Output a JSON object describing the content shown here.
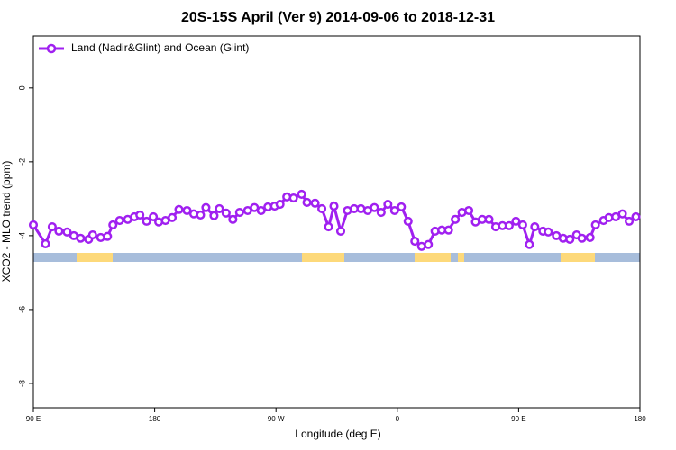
{
  "chart_data": {
    "type": "line",
    "title": "20S-15S April (Ver 9)   2014-09-06 to 2018-12-31",
    "x_label": "Longitude (deg E)",
    "y_label": "XCO2 - MLO trend (ppm)",
    "xlim": [
      90,
      540
    ],
    "ylim": [
      -8.66,
      1.41
    ],
    "xticks": [
      {
        "value": 90,
        "label": "90 E"
      },
      {
        "value": 180,
        "label": "180"
      },
      {
        "value": 270,
        "label": "90 W"
      },
      {
        "value": 360,
        "label": "0"
      },
      {
        "value": 450,
        "label": "90 E"
      },
      {
        "value": 540,
        "label": "180"
      }
    ],
    "yticks": [
      0,
      -2,
      -4,
      -6,
      -8
    ],
    "legend_position": "top-left",
    "x": [
      90,
      99,
      104,
      109,
      115,
      120,
      125,
      131,
      134,
      140,
      145,
      149,
      154,
      160,
      165,
      169,
      174,
      179,
      183,
      188,
      193,
      198,
      204,
      209,
      214,
      218,
      224,
      228,
      233,
      238,
      243,
      249,
      254,
      259,
      264,
      269,
      273,
      278,
      283,
      289,
      293,
      299,
      304,
      309,
      313,
      318,
      323,
      328,
      333,
      338,
      343,
      348,
      353,
      358,
      363,
      368,
      373,
      378,
      383,
      388,
      393,
      398,
      403,
      408,
      413,
      418,
      423,
      428,
      433,
      438,
      443,
      448,
      453,
      458,
      462,
      468,
      472,
      478,
      483,
      488,
      493,
      497,
      503,
      507,
      513,
      517,
      522,
      527,
      532,
      537
    ],
    "series": [
      {
        "name": "Land (Nadir&Glint) and Ocean (Glint)",
        "color": "#a020f0",
        "values": [
          -3.71,
          -4.22,
          -3.76,
          -3.88,
          -3.9,
          -4.0,
          -4.07,
          -4.1,
          -3.98,
          -4.05,
          -4.02,
          -3.71,
          -3.59,
          -3.56,
          -3.49,
          -3.44,
          -3.61,
          -3.49,
          -3.63,
          -3.59,
          -3.51,
          -3.29,
          -3.32,
          -3.41,
          -3.44,
          -3.24,
          -3.46,
          -3.27,
          -3.39,
          -3.56,
          -3.37,
          -3.32,
          -3.24,
          -3.32,
          -3.22,
          -3.2,
          -3.15,
          -2.95,
          -2.98,
          -2.88,
          -3.1,
          -3.12,
          -3.27,
          -3.76,
          -3.2,
          -3.88,
          -3.32,
          -3.27,
          -3.27,
          -3.32,
          -3.24,
          -3.37,
          -3.15,
          -3.32,
          -3.22,
          -3.61,
          -4.15,
          -4.29,
          -4.24,
          -3.88,
          -3.85,
          -3.85,
          -3.56,
          -3.37,
          -3.32,
          -3.63,
          -3.56,
          -3.56,
          -3.76,
          -3.73,
          -3.73,
          -3.61,
          -3.71,
          -4.24,
          -3.76,
          -3.88,
          -3.9,
          -4.0,
          -4.07,
          -4.1,
          -3.98,
          -4.07,
          -4.05,
          -3.71,
          -3.59,
          -3.51,
          -3.49,
          -3.41,
          -3.61,
          -3.49
        ]
      }
    ]
  }
}
